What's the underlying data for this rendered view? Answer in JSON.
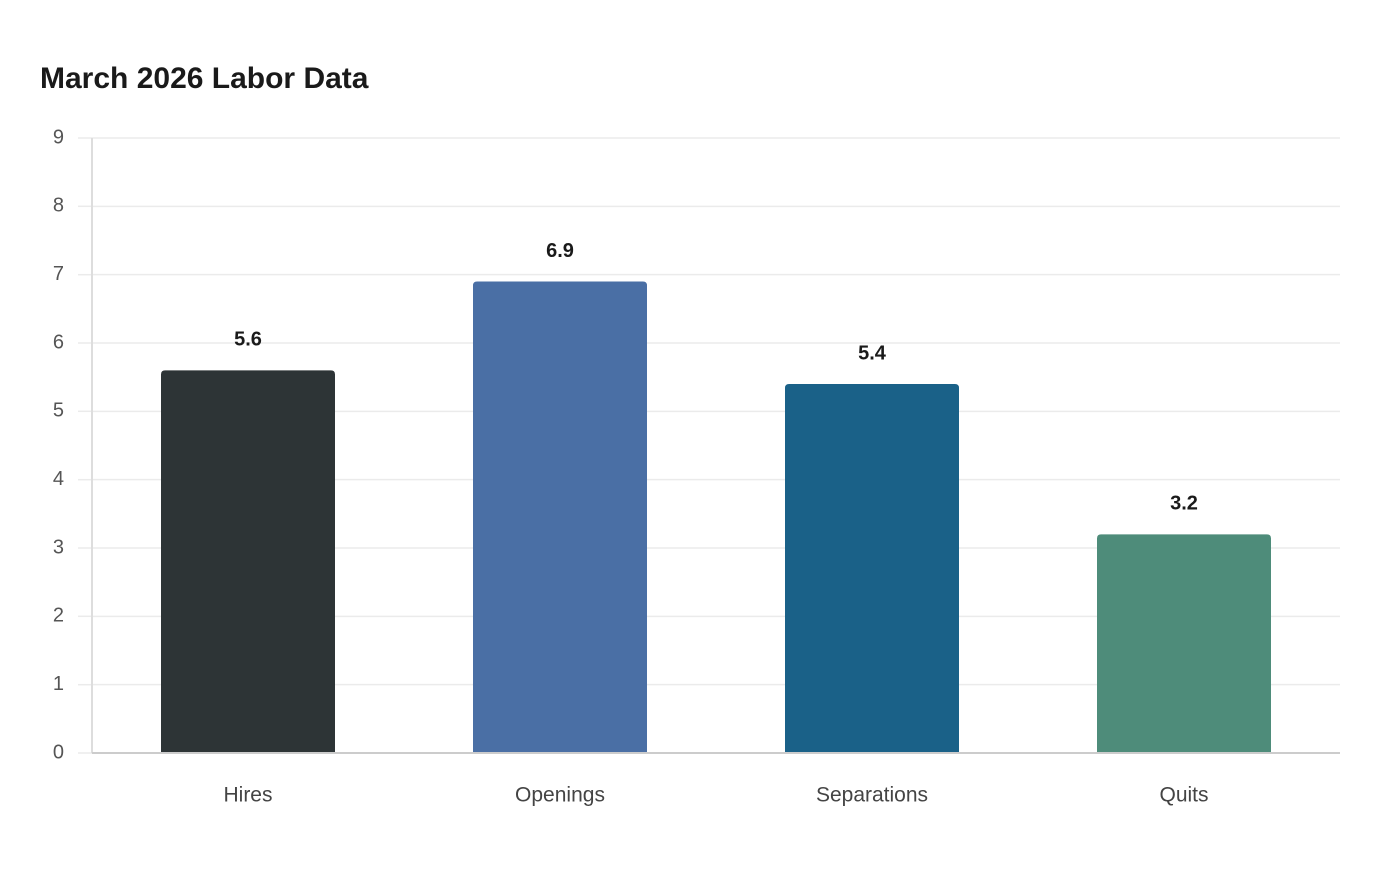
{
  "chart_data": {
    "type": "bar",
    "title": "March 2026 Labor Data",
    "categories": [
      "Hires",
      "Openings",
      "Separations",
      "Quits"
    ],
    "values": [
      5.6,
      6.9,
      5.4,
      3.2
    ],
    "colors": [
      "#2d3436",
      "#4a6fa5",
      "#1a6188",
      "#4e8c7a"
    ],
    "ylim": [
      0,
      9
    ],
    "yticks": [
      0,
      1,
      2,
      3,
      4,
      5,
      6,
      7,
      8,
      9
    ],
    "grid": true
  }
}
